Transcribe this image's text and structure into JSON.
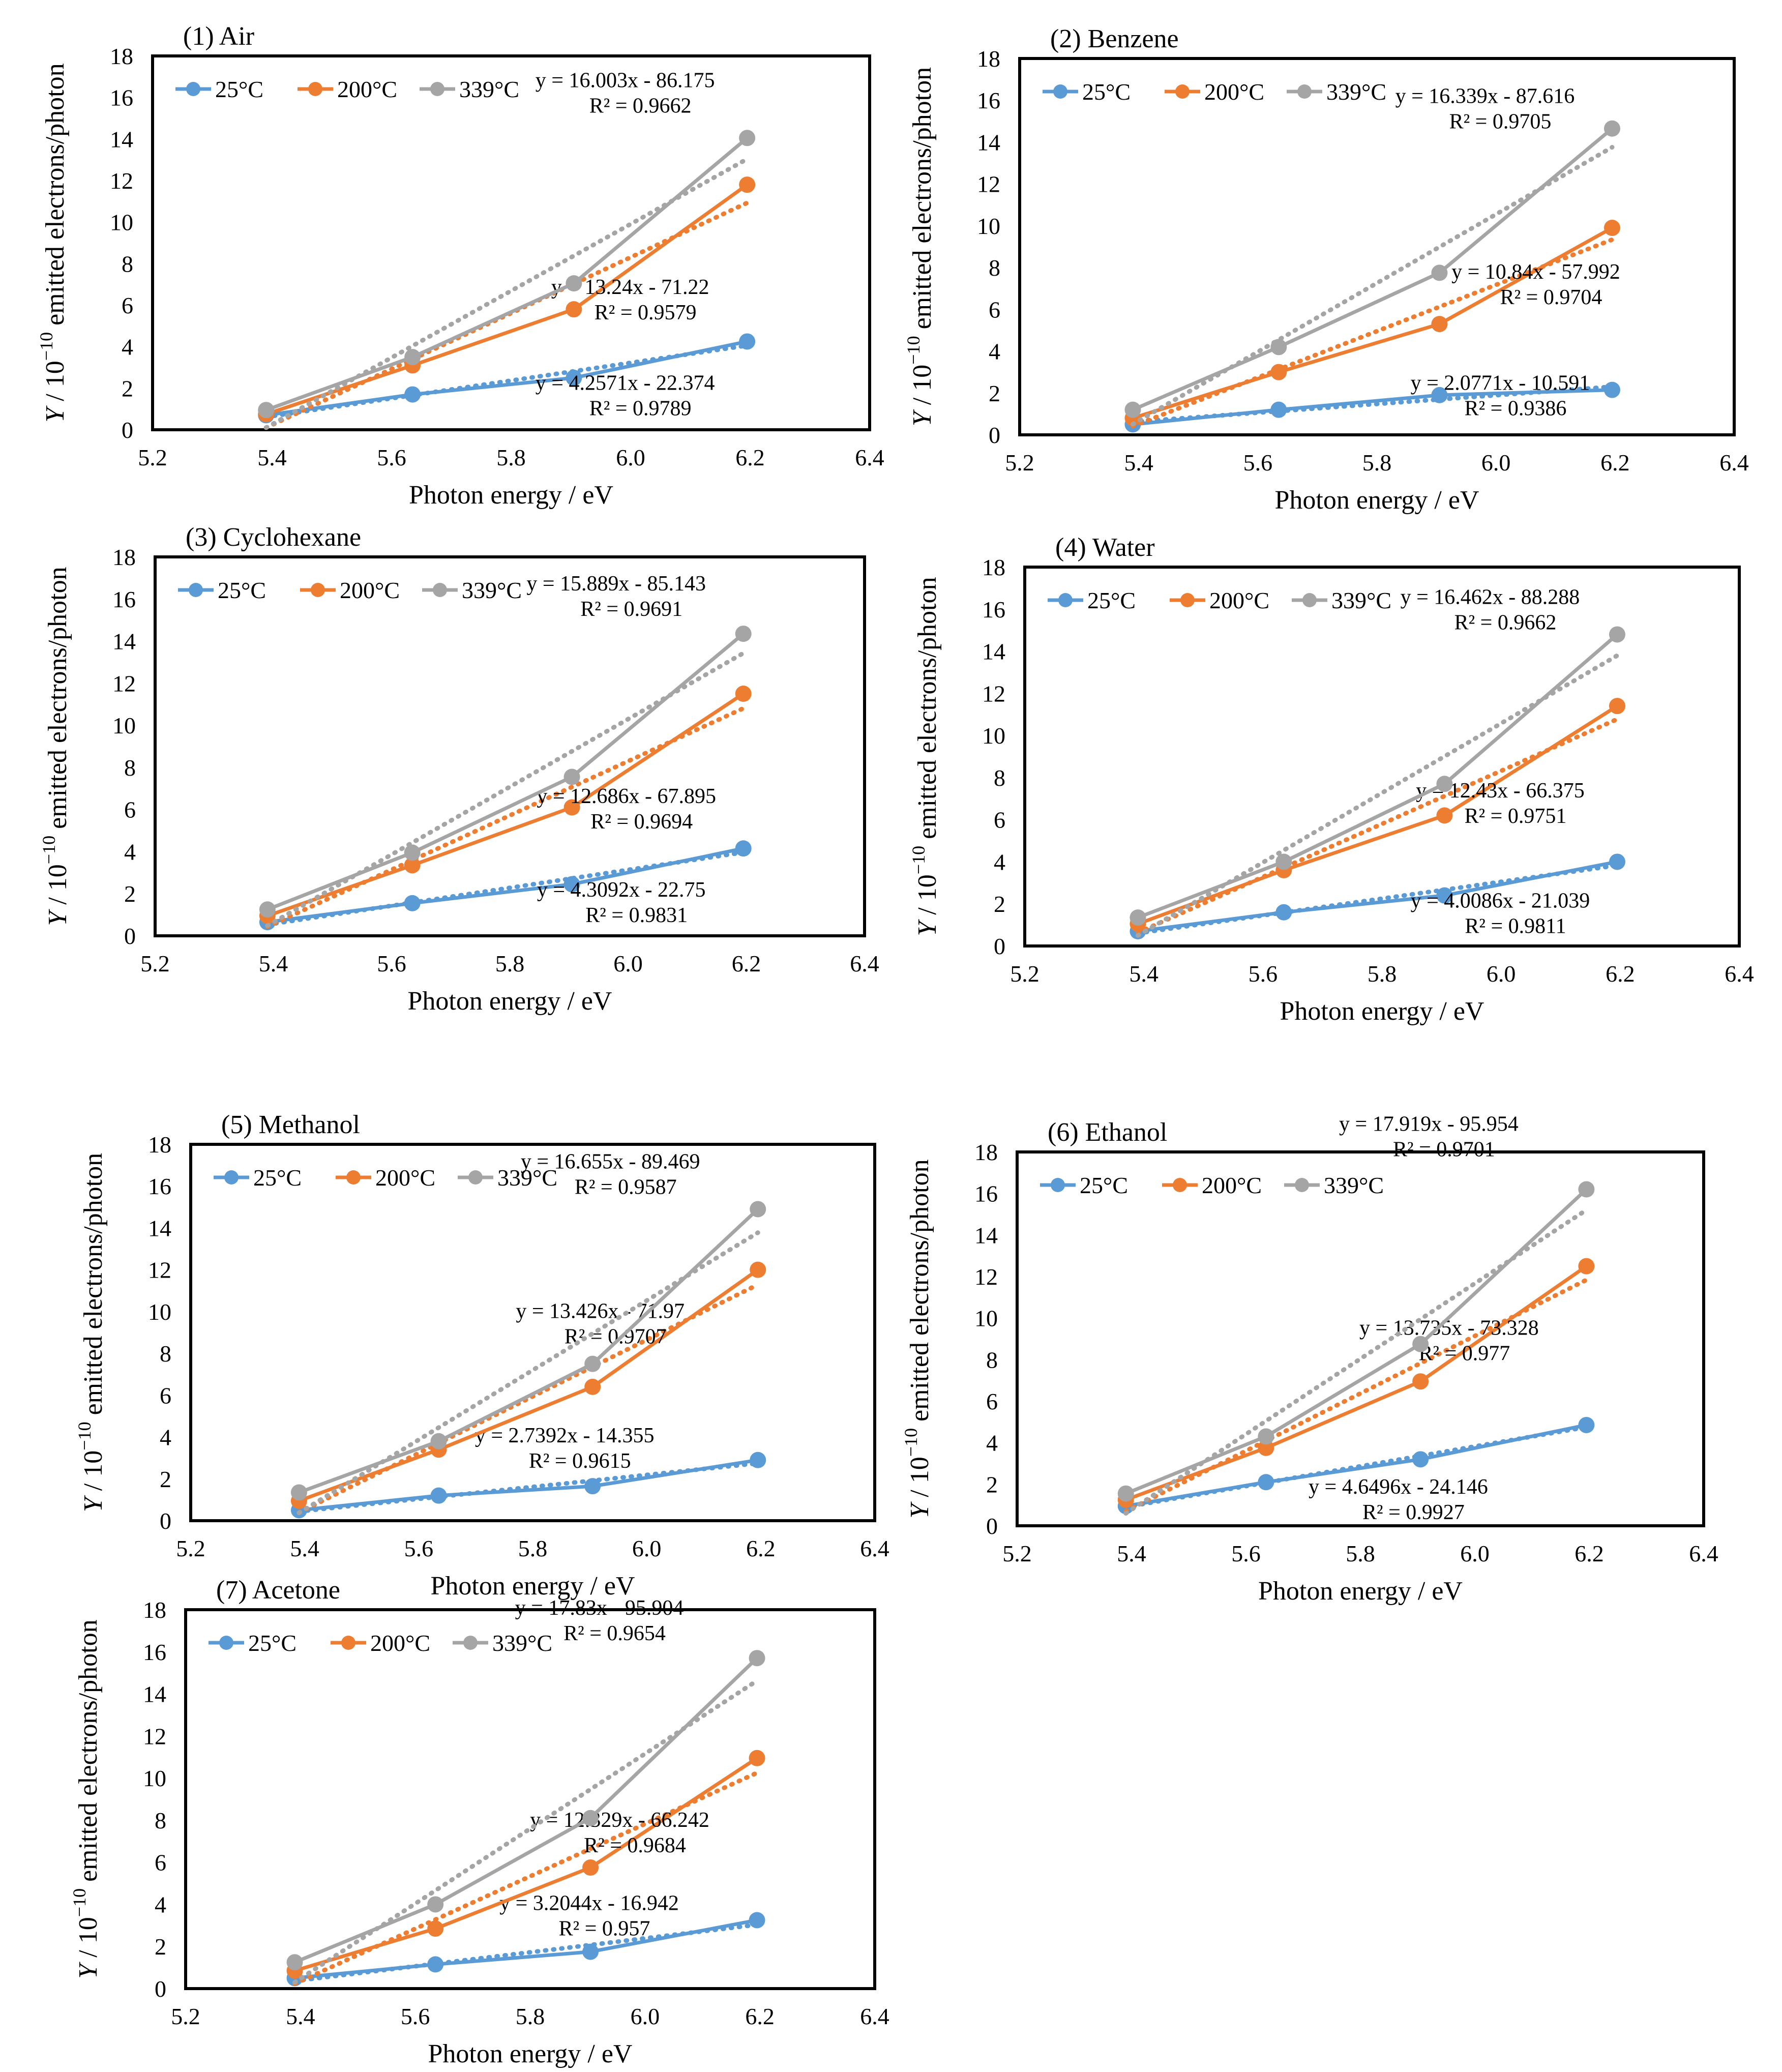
{
  "figure": {
    "x_axis_label": "Photon energy / eV",
    "y_axis_label_italic": "Y",
    "y_axis_label_prefix": " / 10",
    "y_axis_label_exp": "−10",
    "y_axis_label_suffix": " emitted electrons/photon"
  },
  "chart_data": [
    {
      "type": "line",
      "title": "(1) Air",
      "x": [
        5.39,
        5.635,
        5.905,
        6.195
      ],
      "xlim": [
        5.2,
        6.4
      ],
      "ylim": [
        0,
        18
      ],
      "xticks": [
        "5.2",
        "5.4",
        "5.6",
        "5.8",
        "6.0",
        "6.2",
        "6.4"
      ],
      "yticks": [
        "0",
        "2",
        "4",
        "6",
        "8",
        "10",
        "12",
        "14",
        "16",
        "18"
      ],
      "xlabel": "Photon energy / eV",
      "ylabel": "Y / 10−10 emitted electrons/photon",
      "legend_position": "top-left",
      "series": [
        {
          "name": "25°C",
          "color": "#5b9bd5",
          "values": [
            0.7,
            1.7,
            2.5,
            4.25
          ],
          "trendline": {
            "equation": "y = 4.2571x - 22.374",
            "r2": "R² = 0.9789"
          }
        },
        {
          "name": "200°C",
          "color": "#ed7d31",
          "values": [
            0.75,
            3.1,
            5.8,
            11.8
          ],
          "trendline": {
            "equation": "y = 13.24x - 71.22",
            "r2": "R² = 0.9579"
          }
        },
        {
          "name": "339°C",
          "color": "#a5a5a5",
          "values": [
            0.95,
            3.5,
            7.05,
            14.05
          ],
          "trendline": {
            "equation": "y = 16.003x - 86.175",
            "r2": "R² = 0.9662"
          }
        }
      ]
    },
    {
      "type": "line",
      "title": "(2) Benzene",
      "x": [
        5.39,
        5.635,
        5.905,
        6.195
      ],
      "xlim": [
        5.2,
        6.4
      ],
      "ylim": [
        0,
        18
      ],
      "xticks": [
        "5.2",
        "5.4",
        "5.6",
        "5.8",
        "6.0",
        "6.2",
        "6.4"
      ],
      "yticks": [
        "0",
        "2",
        "4",
        "6",
        "8",
        "10",
        "12",
        "14",
        "16",
        "18"
      ],
      "xlabel": "Photon energy / eV",
      "ylabel": "Y / 10−10 emitted electrons/photon",
      "legend_position": "top-left",
      "series": [
        {
          "name": "25°C",
          "color": "#5b9bd5",
          "values": [
            0.5,
            1.2,
            1.9,
            2.15
          ],
          "trendline": {
            "equation": "y = 2.0771x - 10.591",
            "r2": "R² = 0.9386"
          }
        },
        {
          "name": "200°C",
          "color": "#ed7d31",
          "values": [
            0.8,
            3.0,
            5.3,
            9.9
          ],
          "trendline": {
            "equation": "y = 10.84x - 57.992",
            "r2": "R² = 0.9704"
          }
        },
        {
          "name": "339°C",
          "color": "#a5a5a5",
          "values": [
            1.2,
            4.2,
            7.75,
            14.65
          ],
          "trendline": {
            "equation": "y = 16.339x - 87.616",
            "r2": "R² = 0.9705"
          }
        }
      ]
    },
    {
      "type": "line",
      "title": "(3) Cyclohexane",
      "x": [
        5.39,
        5.635,
        5.905,
        6.195
      ],
      "xlim": [
        5.2,
        6.4
      ],
      "ylim": [
        0,
        18
      ],
      "xticks": [
        "5.2",
        "5.4",
        "5.6",
        "5.8",
        "6.0",
        "6.2",
        "6.4"
      ],
      "yticks": [
        "0",
        "2",
        "4",
        "6",
        "8",
        "10",
        "12",
        "14",
        "16",
        "18"
      ],
      "xlabel": "Photon energy / eV",
      "ylabel": "Y / 10−10 emitted electrons/photon",
      "legend_position": "top-left",
      "series": [
        {
          "name": "25°C",
          "color": "#5b9bd5",
          "values": [
            0.65,
            1.55,
            2.45,
            4.15
          ],
          "trendline": {
            "equation": "y = 4.3092x - 22.75",
            "r2": "R² = 0.9831"
          }
        },
        {
          "name": "200°C",
          "color": "#ed7d31",
          "values": [
            0.95,
            3.35,
            6.1,
            11.5
          ],
          "trendline": {
            "equation": "y = 12.686x - 67.895",
            "r2": "R² = 0.9694"
          }
        },
        {
          "name": "339°C",
          "color": "#a5a5a5",
          "values": [
            1.25,
            3.95,
            7.55,
            14.35
          ],
          "trendline": {
            "equation": "y = 15.889x - 85.143",
            "r2": "R² = 0.9691"
          }
        }
      ]
    },
    {
      "type": "line",
      "title": "(4) Water",
      "x": [
        5.39,
        5.635,
        5.905,
        6.195
      ],
      "xlim": [
        5.2,
        6.4
      ],
      "ylim": [
        0,
        18
      ],
      "xticks": [
        "5.2",
        "5.4",
        "5.6",
        "5.8",
        "6.0",
        "6.2",
        "6.4"
      ],
      "yticks": [
        "0",
        "2",
        "4",
        "6",
        "8",
        "10",
        "12",
        "14",
        "16",
        "18"
      ],
      "xlabel": "Photon energy / eV",
      "ylabel": "Y / 10−10 emitted electrons/photon",
      "legend_position": "top-left",
      "series": [
        {
          "name": "25°C",
          "color": "#5b9bd5",
          "values": [
            0.7,
            1.6,
            2.4,
            4.0
          ],
          "trendline": {
            "equation": "y = 4.0086x - 21.039",
            "r2": "R² = 0.9811"
          }
        },
        {
          "name": "200°C",
          "color": "#ed7d31",
          "values": [
            1.05,
            3.6,
            6.2,
            11.4
          ],
          "trendline": {
            "equation": "y = 12.43x - 66.375",
            "r2": "R² = 0.9751"
          }
        },
        {
          "name": "339°C",
          "color": "#a5a5a5",
          "values": [
            1.35,
            4.0,
            7.7,
            14.8
          ],
          "trendline": {
            "equation": "y = 16.462x - 88.288",
            "r2": "R² = 0.9662"
          }
        }
      ]
    },
    {
      "type": "line",
      "title": "(5) Methanol",
      "x": [
        5.39,
        5.635,
        5.905,
        6.195
      ],
      "xlim": [
        5.2,
        6.4
      ],
      "ylim": [
        0,
        18
      ],
      "xticks": [
        "5.2",
        "5.4",
        "5.6",
        "5.8",
        "6.0",
        "6.2",
        "6.4"
      ],
      "yticks": [
        "0",
        "2",
        "4",
        "6",
        "8",
        "10",
        "12",
        "14",
        "16",
        "18"
      ],
      "xlabel": "Photon energy / eV",
      "ylabel": "Y / 10−10 emitted electrons/photon",
      "legend_position": "top-left",
      "series": [
        {
          "name": "25°C",
          "color": "#5b9bd5",
          "values": [
            0.5,
            1.2,
            1.65,
            2.9
          ],
          "trendline": {
            "equation": "y = 2.7392x - 14.355",
            "r2": "R² = 0.9615"
          }
        },
        {
          "name": "200°C",
          "color": "#ed7d31",
          "values": [
            0.95,
            3.4,
            6.4,
            12.0
          ],
          "trendline": {
            "equation": "y = 13.426x - 71.97",
            "r2": "R² = 0.9707"
          }
        },
        {
          "name": "339°C",
          "color": "#a5a5a5",
          "values": [
            1.35,
            3.8,
            7.5,
            14.9
          ],
          "trendline": {
            "equation": "y = 16.655x - 89.469",
            "r2": "R² = 0.9587"
          }
        }
      ]
    },
    {
      "type": "line",
      "title": "(6) Ethanol",
      "x": [
        5.39,
        5.635,
        5.905,
        6.195
      ],
      "xlim": [
        5.2,
        6.4
      ],
      "ylim": [
        0,
        18
      ],
      "xticks": [
        "5.2",
        "5.4",
        "5.6",
        "5.8",
        "6.0",
        "6.2",
        "6.4"
      ],
      "yticks": [
        "0",
        "2",
        "4",
        "6",
        "8",
        "10",
        "12",
        "14",
        "16",
        "18"
      ],
      "xlabel": "Photon energy / eV",
      "ylabel": "Y / 10−10 emitted electrons/photon",
      "legend_position": "top-left",
      "series": [
        {
          "name": "25°C",
          "color": "#5b9bd5",
          "values": [
            0.95,
            2.1,
            3.2,
            4.85
          ],
          "trendline": {
            "equation": "y = 4.6496x - 24.146",
            "r2": "R² = 0.9927"
          }
        },
        {
          "name": "200°C",
          "color": "#ed7d31",
          "values": [
            1.25,
            3.75,
            6.95,
            12.5
          ],
          "trendline": {
            "equation": "y = 13.735x - 73.328",
            "r2": "R² = 0.977"
          }
        },
        {
          "name": "339°C",
          "color": "#a5a5a5",
          "values": [
            1.55,
            4.3,
            8.75,
            16.2
          ],
          "trendline": {
            "equation": "y = 17.919x - 95.954",
            "r2": "R² = 0.9701"
          }
        }
      ]
    },
    {
      "type": "line",
      "title": "(7) Acetone",
      "x": [
        5.39,
        5.635,
        5.905,
        6.195
      ],
      "xlim": [
        5.2,
        6.4
      ],
      "ylim": [
        0,
        18
      ],
      "xticks": [
        "5.2",
        "5.4",
        "5.6",
        "5.8",
        "6.0",
        "6.2",
        "6.4"
      ],
      "yticks": [
        "0",
        "2",
        "4",
        "6",
        "8",
        "10",
        "12",
        "14",
        "16",
        "18"
      ],
      "xlabel": "Photon energy / eV",
      "ylabel": "Y / 10−10 emitted electrons/photon",
      "legend_position": "top-left",
      "series": [
        {
          "name": "25°C",
          "color": "#5b9bd5",
          "values": [
            0.5,
            1.15,
            1.75,
            3.25
          ],
          "trendline": {
            "equation": "y = 3.2044x - 16.942",
            "r2": "R² = 0.957"
          }
        },
        {
          "name": "200°C",
          "color": "#ed7d31",
          "values": [
            0.85,
            2.85,
            5.75,
            10.95
          ],
          "trendline": {
            "equation": "y = 12.329x - 66.242",
            "r2": "R² = 0.9684"
          }
        },
        {
          "name": "339°C",
          "color": "#a5a5a5",
          "values": [
            1.25,
            4.0,
            8.1,
            15.7
          ],
          "trendline": {
            "equation": "y = 17.83x - 95.904",
            "r2": "R² = 0.9654"
          }
        }
      ]
    }
  ]
}
